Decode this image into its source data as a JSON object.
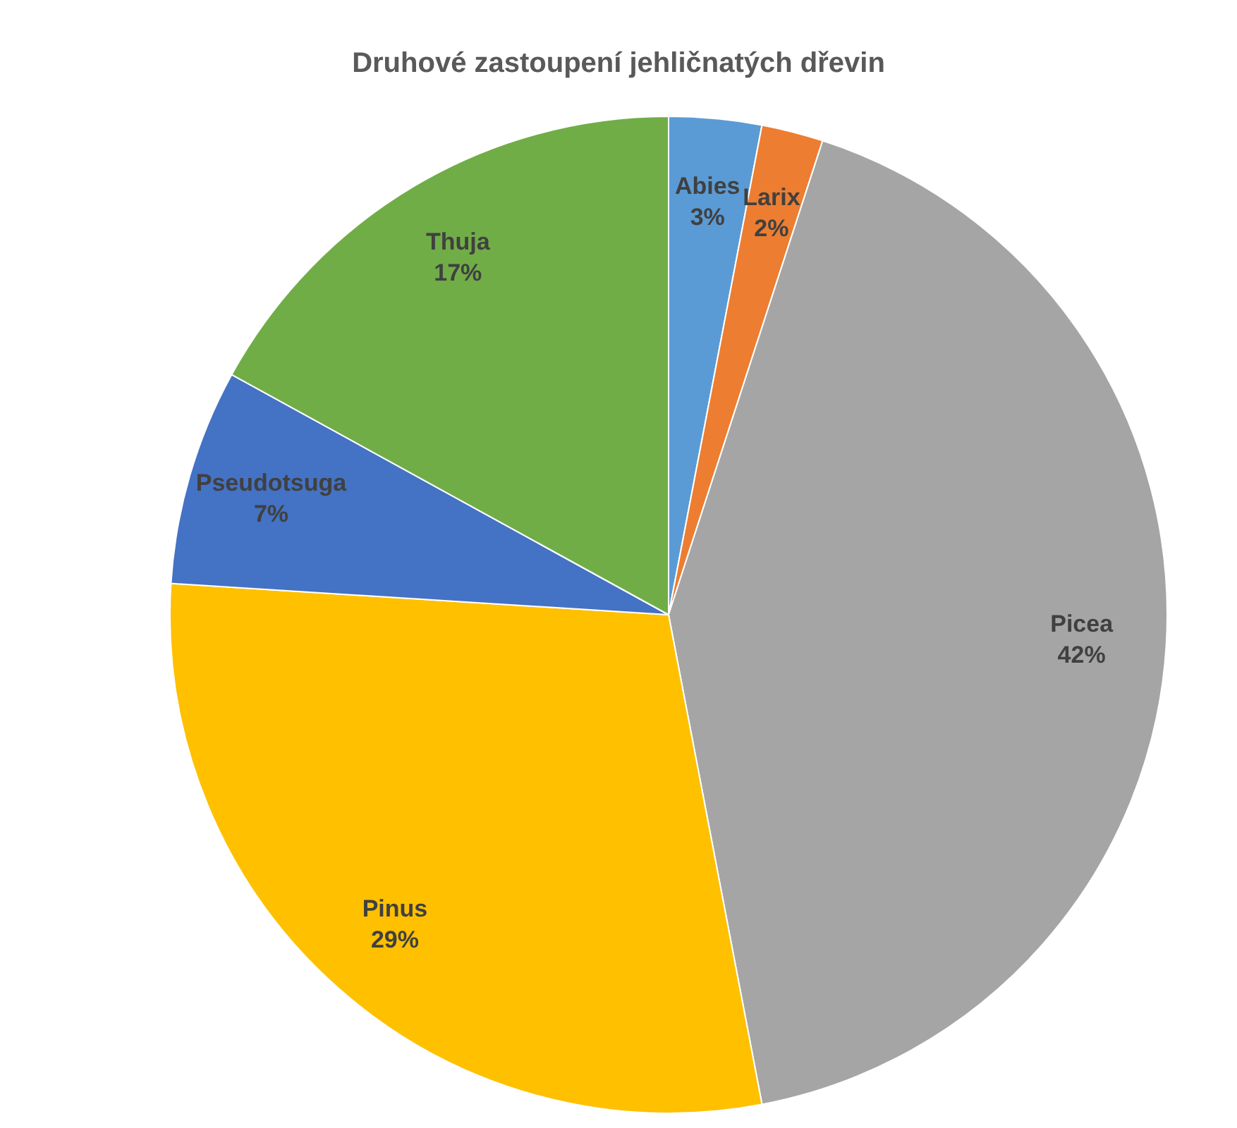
{
  "chart_data": {
    "type": "pie",
    "title": "Druhové zastoupení jehličnatých dřevin",
    "categories": [
      "Abies",
      "Larix",
      "Picea",
      "Pinus",
      "Pseudotsuga",
      "Thuja"
    ],
    "values": [
      3,
      2,
      42,
      29,
      7,
      17
    ],
    "value_labels": [
      "3%",
      "2%",
      "42%",
      "29%",
      "7%",
      "17%"
    ],
    "colors": [
      "#5b9bd5",
      "#ed7d31",
      "#a5a5a5",
      "#ffc000",
      "#4472c4",
      "#70ad47"
    ],
    "legend": false
  }
}
